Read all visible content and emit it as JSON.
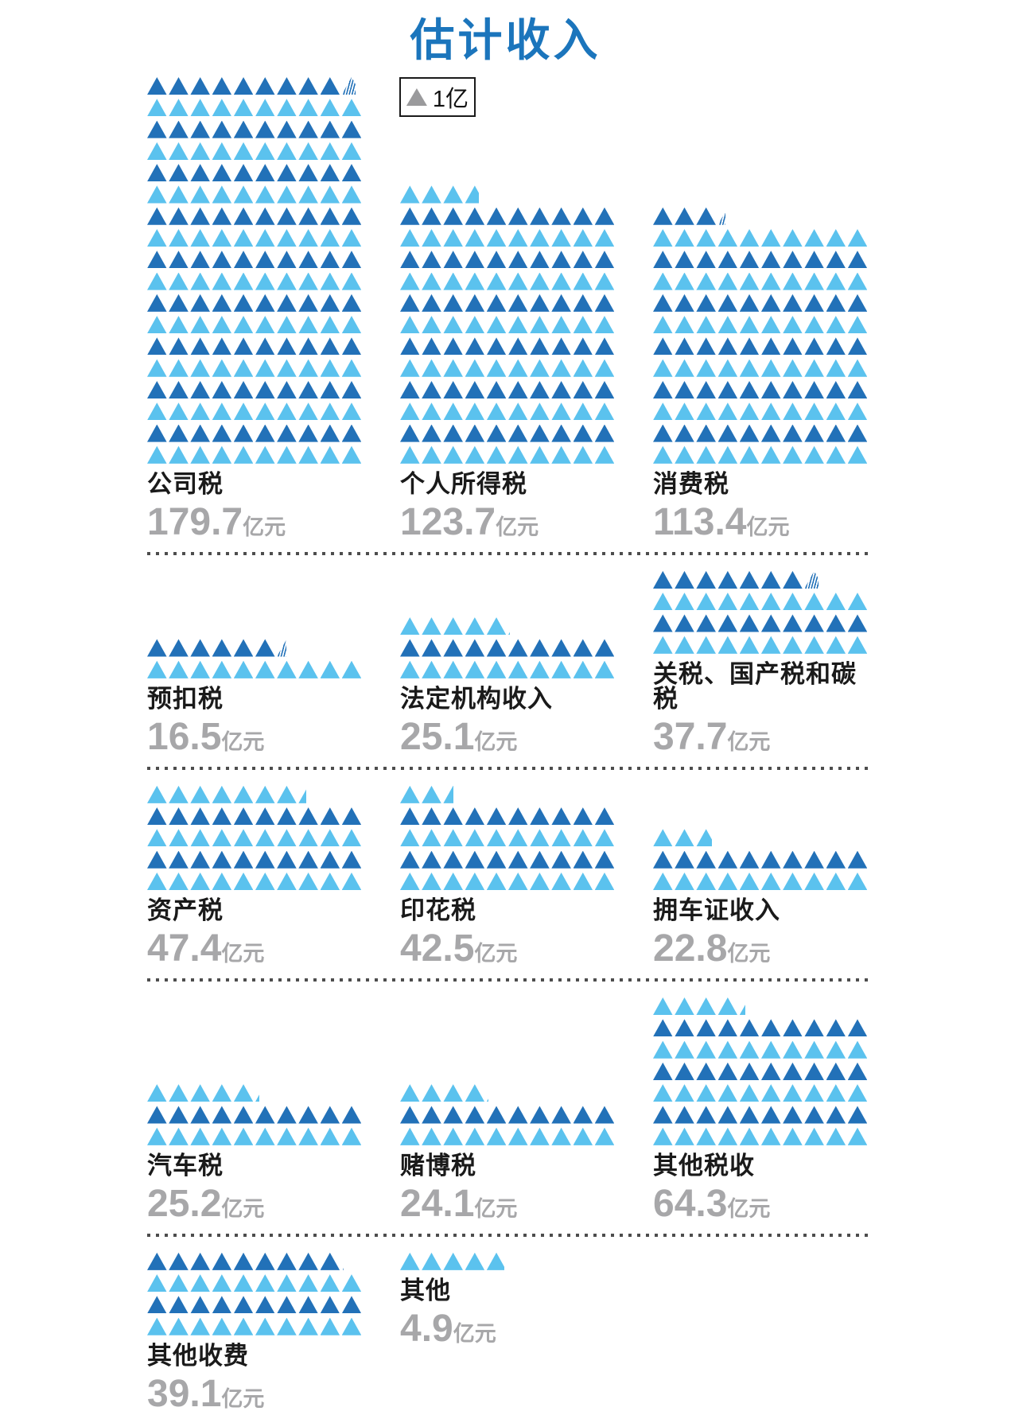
{
  "header": {
    "title": "估计收入"
  },
  "legend": {
    "symbol": "triangle-icon",
    "symbol_color": "#9A9A9C",
    "label": "1亿"
  },
  "chart_data": {
    "type": "pictogram",
    "title": "估计收入",
    "unit_per_triangle": 1,
    "unit_suffix": "亿",
    "triangles_per_row": 10,
    "value_unit": "亿元",
    "colors": {
      "dark": "#2271B8",
      "light": "#5BC2EE",
      "title": "#1B75BC",
      "value_gray": "#A7A7A9"
    },
    "row_color_rule": "bottom row light, alternating upward",
    "bands": [
      {
        "align": "bottom",
        "blocks": [
          {
            "label": "公司税",
            "value": 179.7,
            "num": "179.7"
          },
          {
            "label": "个人所得税",
            "value": 123.7,
            "num": "123.7"
          },
          {
            "label": "消费税",
            "value": 113.4,
            "num": "113.4"
          }
        ]
      },
      {
        "align": "bottom",
        "blocks": [
          {
            "label": "预扣税",
            "value": 16.5,
            "num": "16.5"
          },
          {
            "label": "法定机构收入",
            "value": 25.1,
            "num": "25.1"
          },
          {
            "label": "关税、国产税和碳税",
            "value": 37.7,
            "num": "37.7"
          }
        ]
      },
      {
        "align": "bottom",
        "blocks": [
          {
            "label": "资产税",
            "value": 47.4,
            "num": "47.4"
          },
          {
            "label": "印花税",
            "value": 42.5,
            "num": "42.5"
          },
          {
            "label": "拥车证收入",
            "value": 22.8,
            "num": "22.8"
          }
        ]
      },
      {
        "align": "bottom",
        "blocks": [
          {
            "label": "汽车税",
            "value": 25.2,
            "num": "25.2"
          },
          {
            "label": "赌博税",
            "value": 24.1,
            "num": "24.1"
          },
          {
            "label": "其他税收",
            "value": 64.3,
            "num": "64.3"
          }
        ]
      },
      {
        "align": "top",
        "blocks": [
          {
            "label": "其他收费",
            "value": 39.1,
            "num": "39.1"
          },
          {
            "label": "其他",
            "value": 4.9,
            "num": "4.9"
          }
        ]
      }
    ]
  }
}
